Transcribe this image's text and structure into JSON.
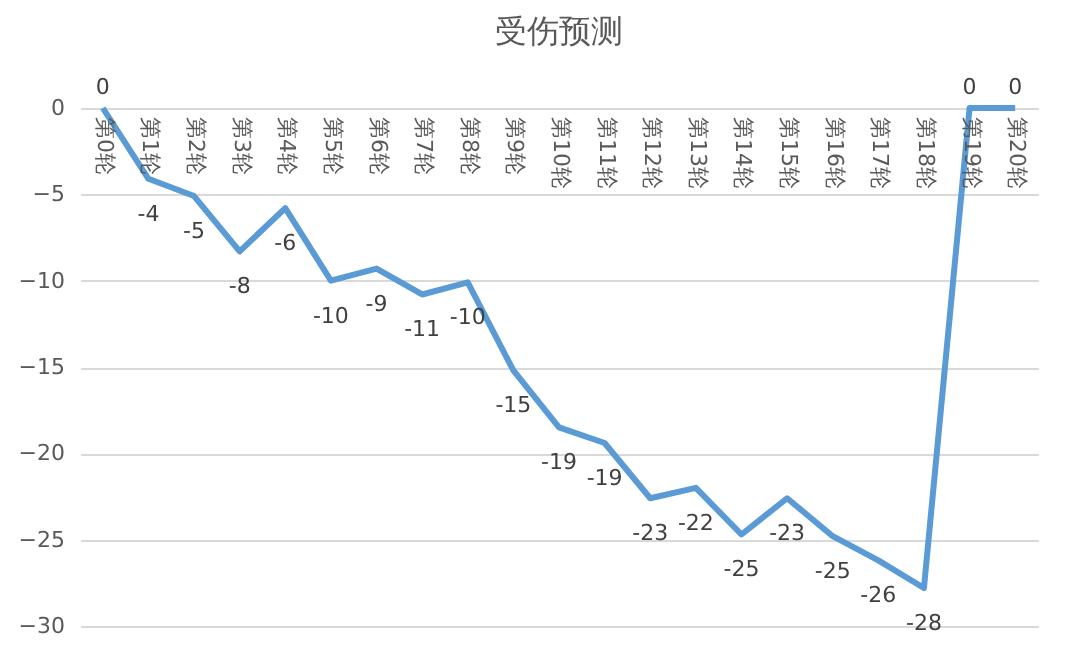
{
  "chart_data": {
    "type": "line",
    "title": "受伤预测",
    "categories": [
      "第0轮",
      "第1轮",
      "第2轮",
      "第3轮",
      "第4轮",
      "第5轮",
      "第6轮",
      "第7轮",
      "第8轮",
      "第9轮",
      "第10轮",
      "第11轮",
      "第12轮",
      "第13轮",
      "第14轮",
      "第15轮",
      "第16轮",
      "第17轮",
      "第18轮",
      "第19轮",
      "第20轮"
    ],
    "series": [
      {
        "color": "#5b9bd5",
        "values": [
          0,
          -4.1,
          -5.1,
          -8.3,
          -5.8,
          -10.0,
          -9.3,
          -10.8,
          -10.1,
          -15.2,
          -18.5,
          -19.4,
          -22.6,
          -22.0,
          -24.7,
          -22.6,
          -24.8,
          -26.2,
          -27.8,
          0,
          0
        ],
        "value_labels": [
          "0",
          "-4",
          "-5",
          "-8",
          "-6",
          "-10",
          "-9",
          "-11",
          "-10",
          "-15",
          "-19",
          "-19",
          "-23",
          "-22",
          "-25",
          "-23",
          "-25",
          "-26",
          "-28",
          "0",
          "0"
        ]
      }
    ],
    "ylim": [
      -30,
      0
    ],
    "yticks": [
      -30,
      -25,
      -20,
      -15,
      -10,
      -5,
      0
    ],
    "grid": "y",
    "marker": "none",
    "line_style": "solid"
  }
}
